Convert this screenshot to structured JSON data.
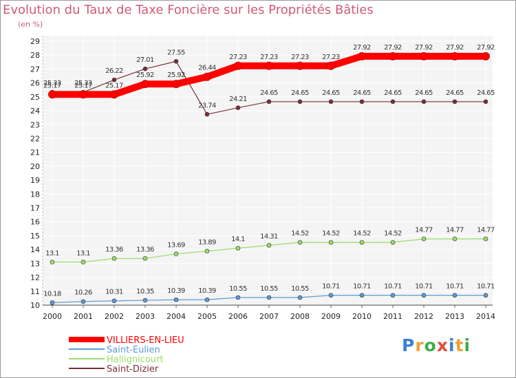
{
  "chart_data": {
    "type": "line",
    "title": "Evolution du Taux de Taxe Foncière sur les Propriétés Bâties",
    "ylabel": "(en %)",
    "xlabel": "",
    "categories": [
      "2000",
      "2001",
      "2002",
      "2003",
      "2004",
      "2005",
      "2006",
      "2007",
      "2008",
      "2009",
      "2010",
      "2011",
      "2012",
      "2013",
      "2014"
    ],
    "ylim": [
      10,
      29
    ],
    "yticks": [
      "10",
      "11",
      "12",
      "13",
      "14",
      "15",
      "16",
      "17",
      "18",
      "19",
      "20",
      "21",
      "22",
      "23",
      "24",
      "25",
      "26",
      "27",
      "28",
      "29"
    ],
    "series": [
      {
        "name": "VILLIERS-EN-LIEU",
        "color": "#ff0000",
        "values": [
          25.17,
          25.17,
          25.17,
          25.92,
          25.92,
          26.44,
          27.23,
          27.23,
          27.23,
          27.23,
          27.92,
          27.92,
          27.92,
          27.92,
          27.92
        ],
        "labels": [
          "25.17",
          "25.17",
          "25.17",
          "25.92",
          "25.92",
          "26.44",
          "27.23",
          "27.23",
          "27.23",
          "27.23",
          "27.92",
          "27.92",
          "27.92",
          "27.92",
          "27.92"
        ]
      },
      {
        "name": "Saint-Eulien",
        "color": "#5b9bd5",
        "values": [
          10.18,
          10.26,
          10.31,
          10.35,
          10.39,
          10.39,
          10.55,
          10.55,
          10.55,
          10.71,
          10.71,
          10.71,
          10.71,
          10.71,
          10.71
        ],
        "labels": [
          "10.18",
          "10.26",
          "10.31",
          "10.35",
          "10.39",
          "10.39",
          "10.55",
          "10.55",
          "10.55",
          "10.71",
          "10.71",
          "10.71",
          "10.71",
          "10.71",
          "10.71"
        ]
      },
      {
        "name": "Hallignicourt",
        "color": "#99dd66",
        "values": [
          13.1,
          13.1,
          13.36,
          13.36,
          13.69,
          13.89,
          14.1,
          14.31,
          14.52,
          14.52,
          14.52,
          14.52,
          14.77,
          14.77,
          14.77
        ],
        "labels": [
          "13.1",
          "13.1",
          "13.36",
          "13.36",
          "13.69",
          "13.89",
          "14.1",
          "14.31",
          "14.52",
          "14.52",
          "14.52",
          "14.52",
          "14.77",
          "14.77",
          "14.77"
        ]
      },
      {
        "name": "Saint-Dizier",
        "color": "#7a2e34",
        "values": [
          25.33,
          25.33,
          26.22,
          27.01,
          27.55,
          23.74,
          24.21,
          24.65,
          24.65,
          24.65,
          24.65,
          24.65,
          24.65,
          24.65,
          24.65
        ],
        "labels": [
          "25.33",
          "25.33",
          "26.22",
          "27.01",
          "27.55",
          "23.74",
          "24.21",
          "24.65",
          "24.65",
          "24.65",
          "24.65",
          "24.65",
          "24.65",
          "24.65",
          "24.65"
        ]
      }
    ],
    "legend": "bottom-left",
    "grid": true
  },
  "logo": {
    "letters": [
      "P",
      "r",
      "o",
      "x",
      "i",
      "t",
      "i"
    ],
    "colors": [
      "#3b7fd4",
      "#e8a33a",
      "#3fae49",
      "#e04a3a",
      "#3b7fd4",
      "#e8a33a",
      "#3fae49"
    ]
  }
}
